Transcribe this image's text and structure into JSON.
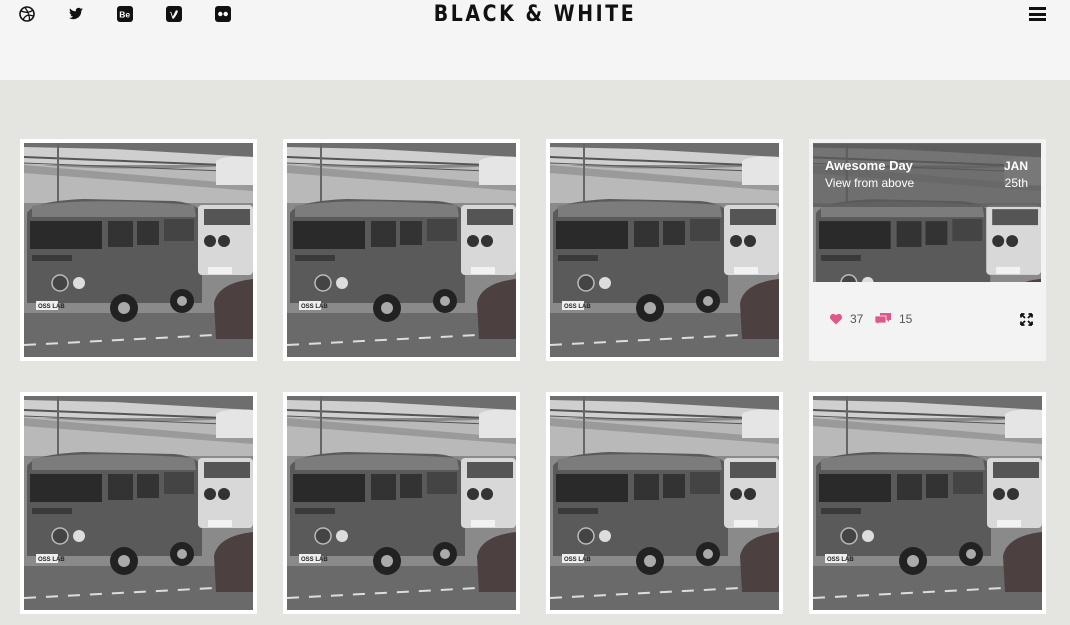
{
  "header": {
    "title": "BLACK & WHITE",
    "social_icons": [
      "dribbble-icon",
      "twitter-icon",
      "behance-icon",
      "vimeo-icon",
      "flickr-icon"
    ],
    "menu_icon": "hamburger-menu-icon"
  },
  "featured": {
    "title": "Awesome Day",
    "subtitle": "View from above",
    "month": "JAN",
    "day": "25th",
    "likes": "37",
    "comments": "15"
  },
  "colors": {
    "accent": "#e0578a",
    "header_bg": "#f5f5f5",
    "page_bg": "#e4e4e0"
  },
  "plate_text": "OSS LAB"
}
